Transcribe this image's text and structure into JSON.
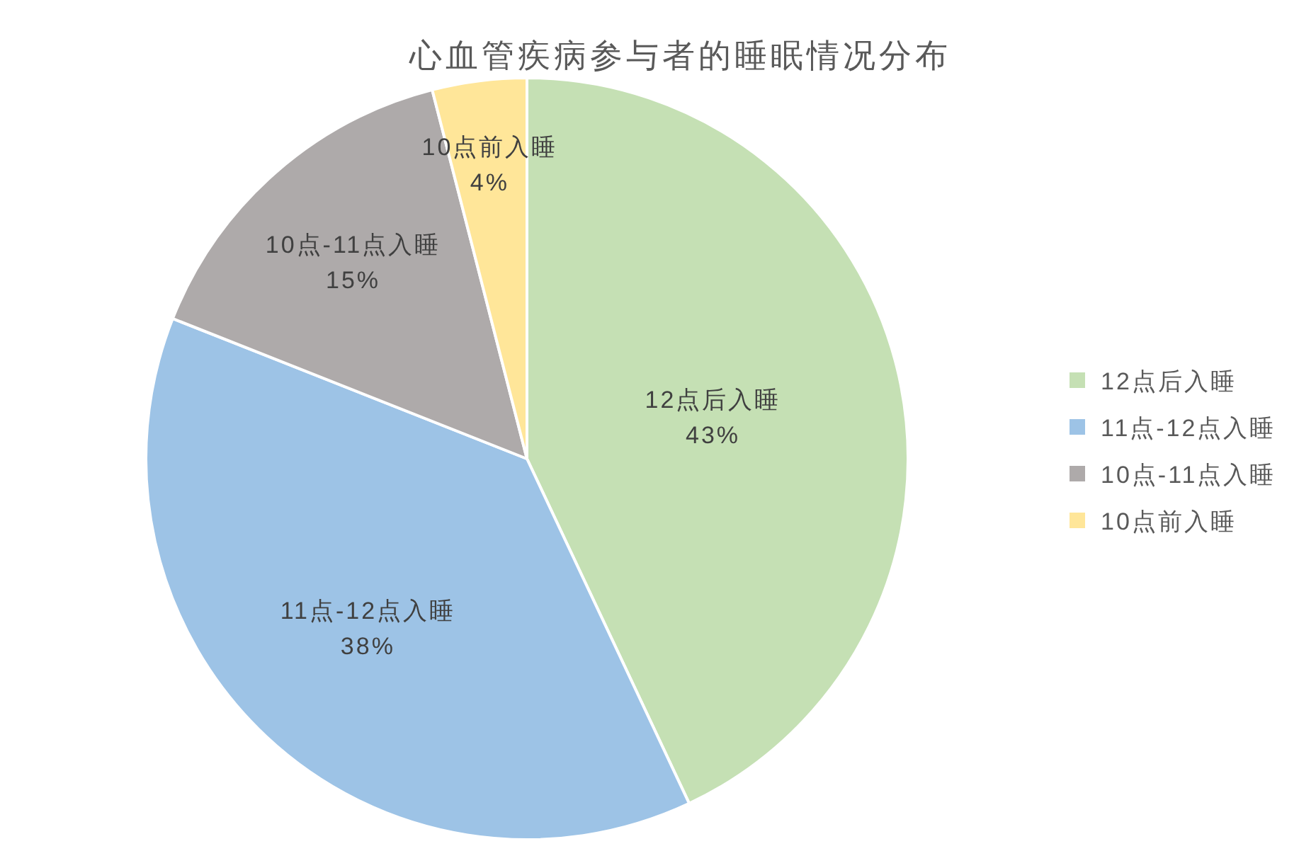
{
  "chart_data": {
    "type": "pie",
    "title": "心血管疾病参与者的睡眠情况分布",
    "categories": [
      "12点后入睡",
      "11点-12点入睡",
      "10点-11点入睡",
      "10点前入睡"
    ],
    "values": [
      43,
      38,
      15,
      4
    ],
    "colors": [
      "#c5e0b4",
      "#9dc3e6",
      "#aeaaaa",
      "#ffe699"
    ],
    "value_labels": [
      "43%",
      "38%",
      "15%",
      "4%"
    ],
    "legend": "right"
  }
}
